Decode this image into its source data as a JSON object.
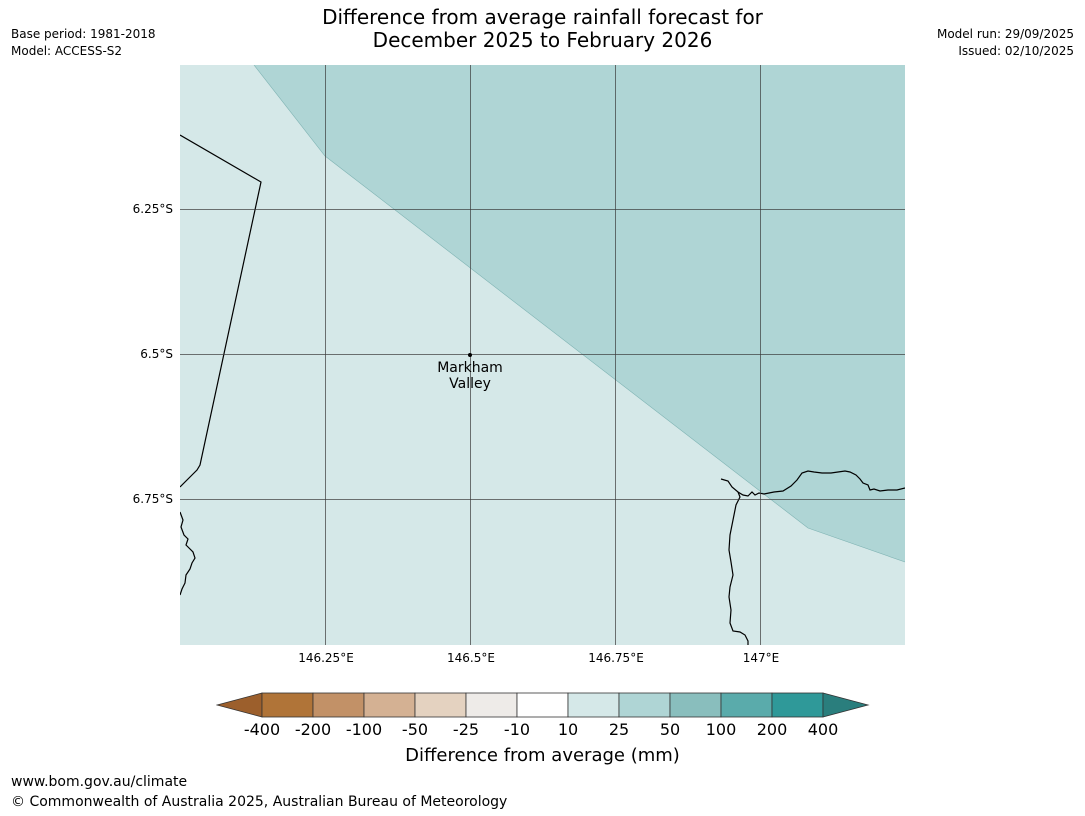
{
  "title": {
    "line1": "Difference from average rainfall forecast for",
    "line2": "December 2025 to February 2026"
  },
  "meta_left": {
    "base_period": "Base period: 1981-2018",
    "model": "Model: ACCESS-S2"
  },
  "meta_right": {
    "model_run": "Model run: 29/09/2025",
    "issued": "Issued: 02/10/2025"
  },
  "map": {
    "lat_ticks": [
      "6.25°S",
      "6.5°S",
      "6.75°S"
    ],
    "lon_ticks": [
      "146.25°E",
      "146.5°E",
      "146.75°E",
      "147°E"
    ],
    "location": {
      "name_line1": "Markham",
      "name_line2": "Valley"
    },
    "zone_colors": {
      "light": "#d5e8e8",
      "medium": "#afd5d5"
    }
  },
  "colorbar": {
    "labels": [
      "-400",
      "-200",
      "-100",
      "-50",
      "-25",
      "-10",
      "10",
      "25",
      "50",
      "100",
      "200",
      "400"
    ],
    "colors": [
      "#9c5f2c",
      "#b07438",
      "#c29167",
      "#d4b193",
      "#e4d2c0",
      "#eeebe8",
      "#ffffff",
      "#d5e8e8",
      "#afd5d5",
      "#89bebd",
      "#5aabab",
      "#2f9999",
      "#2a7e7d"
    ],
    "title": "Difference from average (mm)"
  },
  "footer": {
    "url": "www.bom.gov.au/climate",
    "copyright": "© Commonwealth of Australia 2025, Australian Bureau of Meteorology"
  }
}
